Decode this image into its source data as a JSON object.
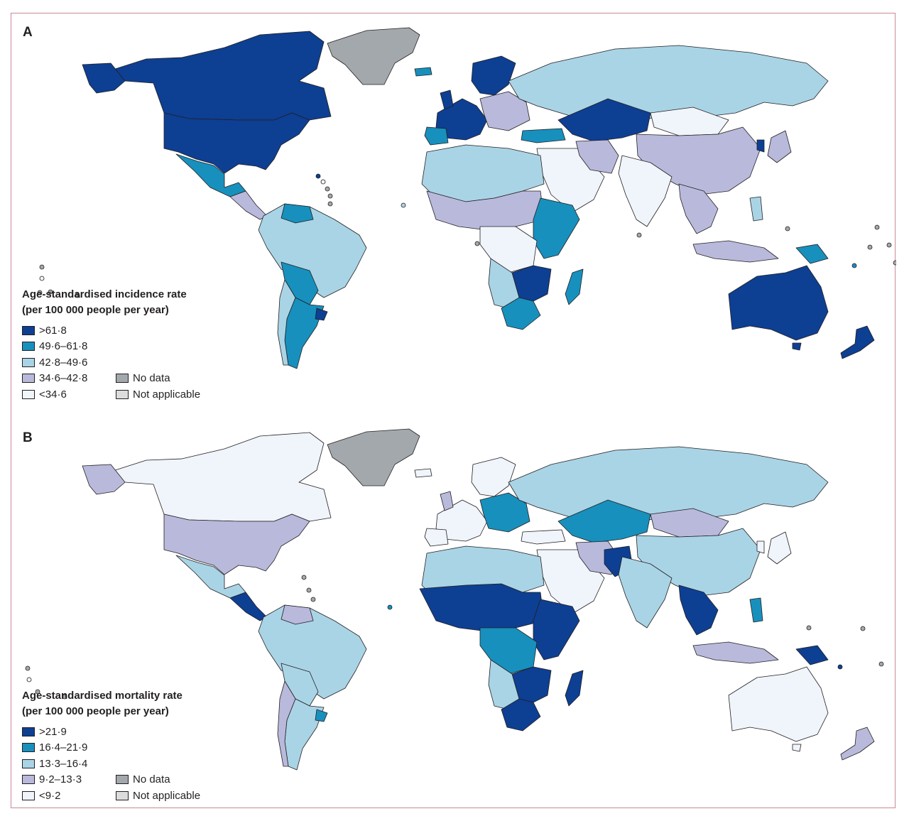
{
  "colors": {
    "c1": "#0d3f93",
    "c2": "#1790bd",
    "c3": "#a9d4e6",
    "c4": "#b9b9dc",
    "c5": "#f0f4fb",
    "nodata": "#a3a8ac",
    "na": "#dcdcdc",
    "outline": "#231f20"
  },
  "panel_a": {
    "letter": "A",
    "legend_title_1": "Age-standardised incidence rate",
    "legend_title_2": "(per 100 000 people per year)",
    "legend": [
      ">61·8",
      "49·6–61·8",
      "42·8–49·6",
      "34·6–42·8",
      "<34·6"
    ],
    "legend_extra": [
      "No data",
      "Not applicable"
    ]
  },
  "panel_b": {
    "letter": "B",
    "legend_title_1": "Age-standardised mortality rate",
    "legend_title_2": "(per 100 000 people per year)",
    "legend": [
      ">21·9",
      "16·4–21·9",
      "13·3–16·4",
      "9·2–13·3",
      "<9·2"
    ],
    "legend_extra": [
      "No data",
      "Not applicable"
    ]
  }
}
